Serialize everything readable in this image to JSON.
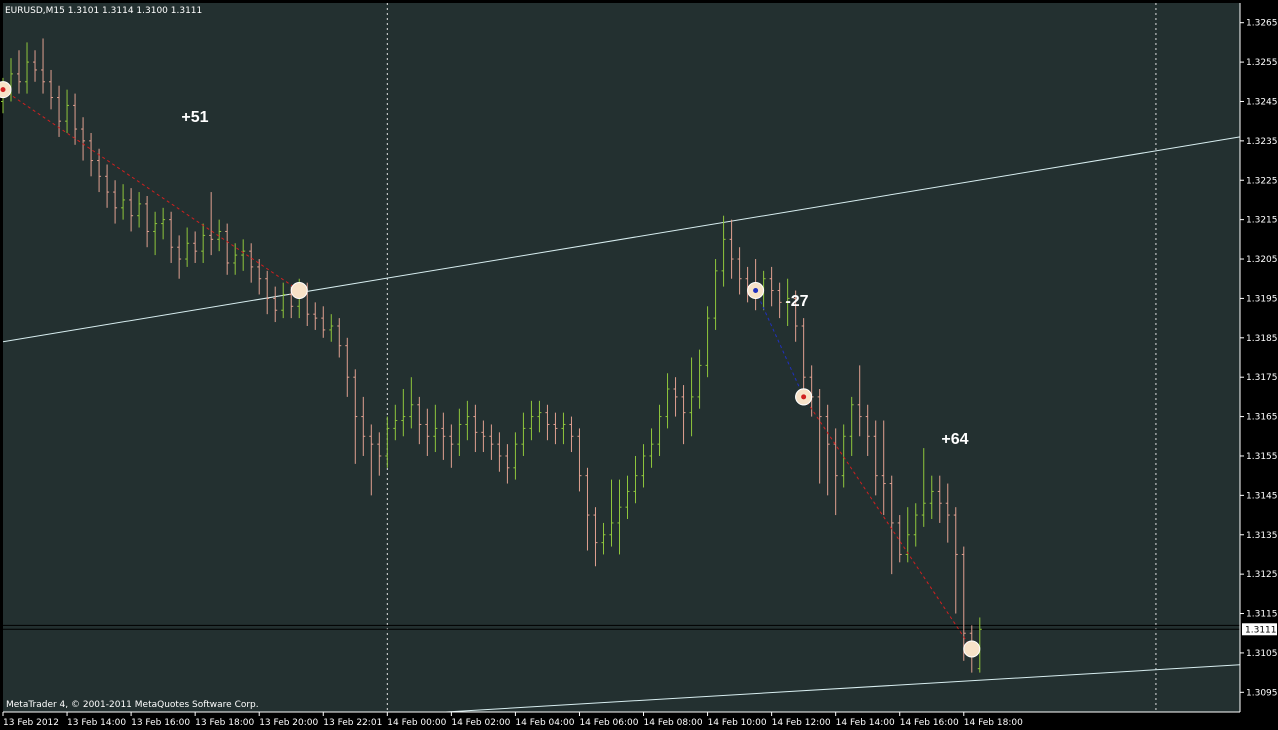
{
  "chart_data": {
    "type": "ohlc",
    "title": "EURUSD,M15  1.3101 1.3114 1.3100 1.3111",
    "footer": "MetaTrader 4, © 2001-2011 MetaQuotes Software Corp.",
    "up_color": "#8fc63c",
    "down_color": "#e0a090",
    "categories": [
      "13 Feb 2012",
      null,
      null,
      null,
      null,
      null,
      null,
      null,
      "13 Feb 14:00",
      null,
      null,
      null,
      null,
      null,
      null,
      null,
      "13 Feb 16:00",
      null,
      null,
      null,
      null,
      null,
      null,
      null,
      "13 Feb 18:00",
      null,
      null,
      null,
      null,
      null,
      null,
      null,
      "13 Feb 20:00",
      null,
      null,
      null,
      null,
      null,
      null,
      null,
      "13 Feb 22:01",
      null,
      null,
      null,
      null,
      null,
      null,
      null,
      "14 Feb 00:00",
      null,
      null,
      null,
      null,
      null,
      null,
      null,
      "14 Feb 02:00",
      null,
      null,
      null,
      null,
      null,
      null,
      null,
      "14 Feb 04:00",
      null,
      null,
      null,
      null,
      null,
      null,
      null,
      "14 Feb 06:00",
      null,
      null,
      null,
      null,
      null,
      null,
      null,
      "14 Feb 08:00",
      null,
      null,
      null,
      null,
      null,
      null,
      null,
      "14 Feb 10:00",
      null,
      null,
      null,
      null,
      null,
      null,
      null,
      "14 Feb 12:00",
      null,
      null,
      null,
      null,
      null,
      null,
      null,
      "14 Feb 14:00",
      null,
      null,
      null,
      null,
      null,
      null,
      null,
      "14 Feb 16:00",
      null,
      null,
      null,
      null,
      null,
      null,
      null,
      "14 Feb 18:00",
      null,
      null
    ],
    "open": [
      1.3245,
      1.3248,
      1.3252,
      1.325,
      1.3255,
      1.3253,
      1.325,
      1.3246,
      1.324,
      1.3244,
      1.3238,
      1.3235,
      1.323,
      1.3226,
      1.3222,
      1.3218,
      1.322,
      1.3216,
      1.3219,
      1.3212,
      1.3214,
      1.3215,
      1.3208,
      1.3205,
      1.3209,
      1.3207,
      1.3211,
      1.321,
      1.3212,
      1.3204,
      1.3206,
      1.3207,
      1.3203,
      1.32,
      1.3195,
      1.3192,
      1.3196,
      1.3193,
      1.3197,
      1.3191,
      1.319,
      1.3187,
      1.3188,
      1.3183,
      1.3175,
      1.3165,
      1.316,
      1.3158,
      1.3155,
      1.3162,
      1.3164,
      1.3165,
      1.3168,
      1.3163,
      1.316,
      1.3162,
      1.316,
      1.3158,
      1.3163,
      1.3165,
      1.3161,
      1.316,
      1.3158,
      1.3155,
      1.3152,
      1.3158,
      1.3162,
      1.3165,
      1.3166,
      1.3163,
      1.3162,
      1.3163,
      1.316,
      1.315,
      1.314,
      1.3133,
      1.3135,
      1.3138,
      1.3142,
      1.3146,
      1.315,
      1.3155,
      1.3158,
      1.3165,
      1.3172,
      1.317,
      1.3166,
      1.317,
      1.3178,
      1.319,
      1.3202,
      1.321,
      1.3205,
      1.32,
      1.3198,
      1.3196,
      1.32,
      1.3197,
      1.3194,
      1.3195,
      1.3188,
      1.3175,
      1.317,
      1.3165,
      1.3158,
      1.315,
      1.316,
      1.3168,
      1.3165,
      1.316,
      1.315,
      1.3148,
      1.3138,
      1.313,
      1.3135,
      1.314,
      1.3143,
      1.3146,
      1.3143,
      1.314,
      1.313,
      1.311,
      1.3101
    ],
    "high": [
      1.3251,
      1.3256,
      1.3258,
      1.326,
      1.3258,
      1.3261,
      1.3253,
      1.3249,
      1.3248,
      1.3247,
      1.3241,
      1.3237,
      1.3233,
      1.3229,
      1.3225,
      1.3224,
      1.3223,
      1.3222,
      1.3221,
      1.3217,
      1.3218,
      1.3217,
      1.3211,
      1.3213,
      1.3212,
      1.3214,
      1.3222,
      1.3215,
      1.3214,
      1.3209,
      1.321,
      1.3209,
      1.3205,
      1.3202,
      1.3198,
      1.3199,
      1.3198,
      1.32,
      1.3199,
      1.3194,
      1.3193,
      1.3191,
      1.319,
      1.3185,
      1.3177,
      1.317,
      1.3163,
      1.3161,
      1.3165,
      1.3168,
      1.3172,
      1.3175,
      1.317,
      1.3167,
      1.3168,
      1.3166,
      1.3163,
      1.3167,
      1.3169,
      1.3168,
      1.3164,
      1.3163,
      1.3161,
      1.3158,
      1.3161,
      1.3166,
      1.3169,
      1.3169,
      1.3168,
      1.3166,
      1.3166,
      1.3165,
      1.3162,
      1.3152,
      1.3142,
      1.3138,
      1.3149,
      1.3149,
      1.315,
      1.3155,
      1.3158,
      1.3162,
      1.3168,
      1.3176,
      1.3175,
      1.3173,
      1.318,
      1.3182,
      1.3193,
      1.3205,
      1.3216,
      1.3215,
      1.3208,
      1.3203,
      1.3205,
      1.3202,
      1.3203,
      1.3199,
      1.32,
      1.3197,
      1.319,
      1.3178,
      1.3172,
      1.3168,
      1.3162,
      1.3163,
      1.317,
      1.3178,
      1.3168,
      1.3164,
      1.3164,
      1.315,
      1.314,
      1.3142,
      1.3143,
      1.3157,
      1.315,
      1.315,
      1.3148,
      1.3142,
      1.3132,
      1.3112,
      1.3114
    ],
    "low": [
      1.3242,
      1.3245,
      1.3247,
      1.3247,
      1.325,
      1.3247,
      1.3243,
      1.3236,
      1.3237,
      1.3234,
      1.323,
      1.3226,
      1.3222,
      1.3218,
      1.3214,
      1.3215,
      1.3212,
      1.3213,
      1.3208,
      1.3206,
      1.321,
      1.3204,
      1.32,
      1.3203,
      1.3204,
      1.3204,
      1.3206,
      1.3207,
      1.3201,
      1.3201,
      1.3202,
      1.3199,
      1.3196,
      1.3191,
      1.3189,
      1.319,
      1.319,
      1.319,
      1.3188,
      1.3187,
      1.3185,
      1.3184,
      1.318,
      1.317,
      1.3153,
      1.3155,
      1.3145,
      1.315,
      1.3152,
      1.3159,
      1.316,
      1.3162,
      1.3158,
      1.3155,
      1.3156,
      1.3154,
      1.3152,
      1.3155,
      1.3159,
      1.3156,
      1.3156,
      1.3154,
      1.3151,
      1.3148,
      1.3149,
      1.3155,
      1.3159,
      1.3161,
      1.3159,
      1.3158,
      1.3158,
      1.3156,
      1.3146,
      1.3131,
      1.3127,
      1.313,
      1.3132,
      1.313,
      1.3139,
      1.3143,
      1.3147,
      1.3152,
      1.3155,
      1.3162,
      1.3165,
      1.3158,
      1.316,
      1.3167,
      1.3175,
      1.3187,
      1.3198,
      1.32,
      1.3196,
      1.3194,
      1.3192,
      1.3192,
      1.3193,
      1.319,
      1.3188,
      1.3184,
      1.317,
      1.3165,
      1.3148,
      1.3145,
      1.314,
      1.3147,
      1.3155,
      1.316,
      1.3155,
      1.3145,
      1.314,
      1.3125,
      1.3128,
      1.3128,
      1.3132,
      1.3137,
      1.3139,
      1.3138,
      1.3133,
      1.3115,
      1.3103,
      1.31,
      1.31
    ],
    "close": [
      1.3248,
      1.3252,
      1.325,
      1.3255,
      1.3253,
      1.325,
      1.3246,
      1.324,
      1.3244,
      1.3238,
      1.3235,
      1.323,
      1.3226,
      1.3222,
      1.3218,
      1.322,
      1.3216,
      1.3219,
      1.3212,
      1.3214,
      1.3215,
      1.3208,
      1.3205,
      1.3209,
      1.3207,
      1.3211,
      1.321,
      1.3212,
      1.3204,
      1.3206,
      1.3207,
      1.3203,
      1.32,
      1.3195,
      1.3192,
      1.3196,
      1.3193,
      1.3197,
      1.3191,
      1.319,
      1.3187,
      1.3188,
      1.3183,
      1.3175,
      1.3165,
      1.316,
      1.3158,
      1.3155,
      1.3162,
      1.3164,
      1.3165,
      1.3168,
      1.3163,
      1.316,
      1.3162,
      1.316,
      1.3158,
      1.3163,
      1.3165,
      1.3161,
      1.316,
      1.3158,
      1.3155,
      1.3152,
      1.3158,
      1.3162,
      1.3165,
      1.3166,
      1.3163,
      1.3162,
      1.3163,
      1.316,
      1.315,
      1.314,
      1.3133,
      1.3135,
      1.3138,
      1.3142,
      1.3146,
      1.315,
      1.3155,
      1.3158,
      1.3165,
      1.3172,
      1.317,
      1.3166,
      1.317,
      1.3178,
      1.319,
      1.3202,
      1.321,
      1.3205,
      1.32,
      1.3198,
      1.3196,
      1.32,
      1.3197,
      1.3194,
      1.3195,
      1.3188,
      1.3175,
      1.317,
      1.3165,
      1.3158,
      1.315,
      1.316,
      1.3168,
      1.3165,
      1.316,
      1.315,
      1.3148,
      1.3138,
      1.313,
      1.3135,
      1.314,
      1.3143,
      1.3146,
      1.3143,
      1.314,
      1.313,
      1.311,
      1.3104,
      1.3111
    ],
    "xlim": [
      0,
      154.5
    ],
    "ylim": [
      1.309,
      1.327
    ],
    "yticks": [
      1.3265,
      1.3255,
      1.3245,
      1.3235,
      1.3225,
      1.3215,
      1.3205,
      1.3195,
      1.3185,
      1.3175,
      1.3165,
      1.3155,
      1.3145,
      1.3135,
      1.3125,
      1.3115,
      1.3105,
      1.3095
    ],
    "period_separators": [
      48,
      144
    ],
    "bid": 1.3111,
    "ask": 1.3112,
    "trendlines": [
      {
        "x": [
          0,
          154.5
        ],
        "y": [
          1.3184,
          1.3236
        ],
        "color": "#d8eef0"
      },
      {
        "x": [
          55.3,
          154.5
        ],
        "y": [
          1.309,
          1.3102
        ],
        "color": "#d8eef0"
      }
    ],
    "trades": [
      {
        "entry_bar": 0,
        "entry_price": 1.3248,
        "exit_bar": 37,
        "exit_price": 1.3197,
        "label": "+51",
        "color": "#d02020"
      },
      {
        "entry_bar": 94,
        "entry_price": 1.3197,
        "exit_bar": 100,
        "exit_price": 1.317,
        "label": "-27",
        "color": "#2030c0"
      },
      {
        "entry_bar": 100,
        "entry_price": 1.317,
        "exit_bar": 121,
        "exit_price": 1.3106,
        "label": "+64",
        "color": "#d02020"
      }
    ]
  }
}
